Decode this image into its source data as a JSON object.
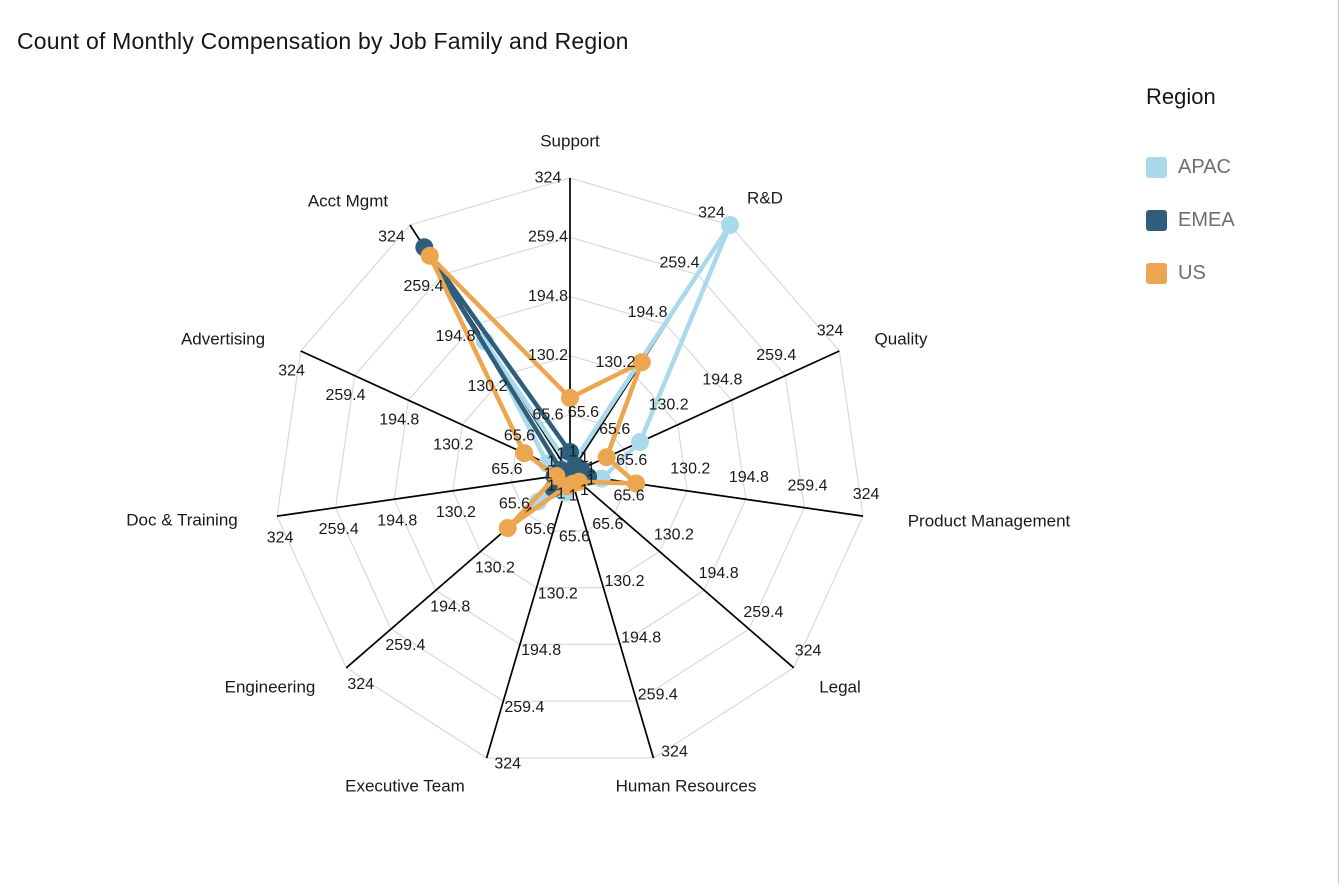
{
  "title": "Count of Monthly Compensation by Job Family and Region",
  "legend": {
    "title": "Region",
    "items": [
      {
        "label": "APAC",
        "color": "#ABD9EC"
      },
      {
        "label": "EMEA",
        "color": "#2F5D7C"
      },
      {
        "label": "US",
        "color": "#EBA64F"
      }
    ]
  },
  "chart_data": {
    "type": "radar",
    "title": "Count of Monthly Compensation by Job Family and Region",
    "axes": [
      "Support",
      "R&D",
      "Quality",
      "Product Management",
      "Legal",
      "Human Resources",
      "Executive Team",
      "Engineering",
      "Doc & Training",
      "Advertising",
      "Acct Mgmt"
    ],
    "tick_values": [
      1,
      65.6,
      130.2,
      194.8,
      259.4,
      324
    ],
    "scale_min": 1,
    "scale_max": 324,
    "grid": true,
    "legend_position": "right",
    "series": [
      {
        "name": "APAC",
        "color": "#ABD9EC",
        "values": [
          8,
          324,
          85,
          36,
          10,
          8,
          22,
          47,
          12,
          28,
          173
        ]
      },
      {
        "name": "EMEA",
        "color": "#2F5D7C",
        "values": [
          25,
          12,
          14,
          21,
          8,
          6,
          10,
          25,
          18,
          12,
          295
        ]
      },
      {
        "name": "US",
        "color": "#EBA64F",
        "values": [
          84,
          146,
          45,
          74,
          14,
          12,
          15,
          91,
          16,
          56,
          284
        ]
      }
    ],
    "colors": {
      "grid_line": "#d9d9d9",
      "axis_line": "#000000",
      "tick_text": "#1a1a1a",
      "axis_name_text": "#1a1a1a"
    }
  }
}
